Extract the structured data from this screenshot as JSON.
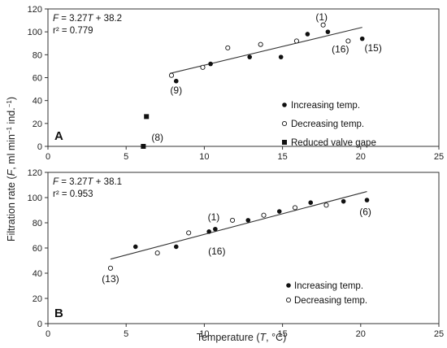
{
  "figure": {
    "ylabel_parts": [
      "Filtration rate (",
      "F",
      ", ml min",
      "−1",
      " ind.",
      "−1",
      ")"
    ],
    "xlabel_parts": [
      "Temperature (",
      "T",
      ", °C)"
    ]
  },
  "chart_data": [
    {
      "type": "scatter",
      "panel": "A",
      "xlim": [
        0,
        25
      ],
      "ylim": [
        0,
        120
      ],
      "xticks": [
        0,
        5,
        10,
        15,
        20,
        25
      ],
      "yticks": [
        0,
        20,
        40,
        60,
        80,
        100,
        120
      ],
      "equation_parts": [
        "F",
        " = 3.27",
        "T",
        " + 38.2"
      ],
      "r2_text": "r² = 0.779",
      "fit": {
        "slope": 3.27,
        "intercept": 38.2,
        "x_range": [
          7.8,
          20.1
        ]
      },
      "legend_position": "right",
      "series": [
        {
          "name": "Increasing temp.",
          "marker": "filled-circle",
          "x": [
            8.2,
            10.4,
            12.9,
            14.9,
            16.6,
            17.9,
            20.1
          ],
          "y": [
            57,
            72,
            78,
            78,
            98,
            100,
            94
          ]
        },
        {
          "name": "Decreasing temp.",
          "marker": "open-circle",
          "x": [
            7.9,
            9.9,
            11.5,
            13.6,
            15.9,
            17.6,
            19.2
          ],
          "y": [
            62,
            69,
            86,
            89,
            92,
            106,
            92
          ]
        },
        {
          "name": "Reduced valve gape",
          "marker": "filled-square",
          "x": [
            6.1,
            6.3
          ],
          "y": [
            0,
            26
          ]
        }
      ],
      "annotations": [
        {
          "text": "(1)",
          "x": 17.5,
          "y": 110
        },
        {
          "text": "(16)",
          "x": 18.7,
          "y": 82
        },
        {
          "text": "(15)",
          "x": 20.8,
          "y": 83
        },
        {
          "text": "(9)",
          "x": 8.2,
          "y": 46
        },
        {
          "text": "(8)",
          "x": 7.0,
          "y": 5
        }
      ]
    },
    {
      "type": "scatter",
      "panel": "B",
      "xlim": [
        0,
        25
      ],
      "ylim": [
        0,
        120
      ],
      "xticks": [
        0,
        5,
        10,
        15,
        20,
        25
      ],
      "yticks": [
        0,
        20,
        40,
        60,
        80,
        100,
        120
      ],
      "equation_parts": [
        "F",
        " = 3.27",
        "T",
        " + 38.1"
      ],
      "r2_text": "r² = 0.953",
      "fit": {
        "slope": 3.27,
        "intercept": 38.1,
        "x_range": [
          4.0,
          20.4
        ]
      },
      "legend_position": "bottom-right",
      "series": [
        {
          "name": "Increasing temp.",
          "marker": "filled-circle",
          "x": [
            5.6,
            8.2,
            10.3,
            10.7,
            12.8,
            14.8,
            16.8,
            18.9,
            20.4
          ],
          "y": [
            61,
            61,
            73,
            75,
            82,
            89,
            96,
            97,
            98
          ]
        },
        {
          "name": "Decreasing temp.",
          "marker": "open-circle",
          "x": [
            4.0,
            7.0,
            9.0,
            11.8,
            13.8,
            15.8,
            17.8
          ],
          "y": [
            44,
            56,
            72,
            82,
            86,
            92,
            94
          ]
        }
      ],
      "annotations": [
        {
          "text": "(1)",
          "x": 10.6,
          "y": 82
        },
        {
          "text": "(16)",
          "x": 10.8,
          "y": 55
        },
        {
          "text": "(13)",
          "x": 4.0,
          "y": 33
        },
        {
          "text": "(6)",
          "x": 20.3,
          "y": 86
        }
      ]
    }
  ]
}
